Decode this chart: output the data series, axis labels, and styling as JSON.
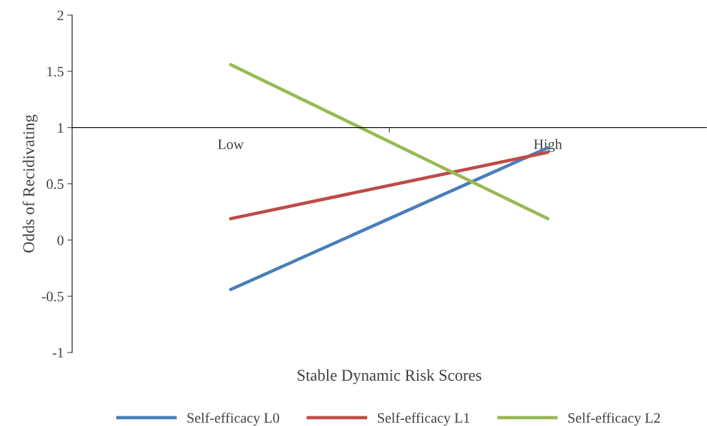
{
  "chart_data": {
    "type": "line",
    "xlabel": "Stable Dynamic Risk Scores",
    "ylabel": "Odds of Recidivating",
    "categories": [
      "Low",
      "High"
    ],
    "series": [
      {
        "name": "Self-efficacy L0",
        "color": "#4a7ebb",
        "values": [
          -0.44,
          0.82
        ]
      },
      {
        "name": "Self-efficacy L1",
        "color": "#be4b48",
        "values": [
          0.19,
          0.78
        ]
      },
      {
        "name": "Self-efficacy L2",
        "color": "#98b954",
        "values": [
          1.56,
          0.19
        ]
      }
    ],
    "ylim": [
      -1,
      2
    ],
    "yticks": [
      -1,
      -0.5,
      0,
      0.5,
      1,
      1.5,
      2
    ],
    "grid": false,
    "legend": "bottom",
    "marker": "none",
    "line_style": "solid"
  }
}
